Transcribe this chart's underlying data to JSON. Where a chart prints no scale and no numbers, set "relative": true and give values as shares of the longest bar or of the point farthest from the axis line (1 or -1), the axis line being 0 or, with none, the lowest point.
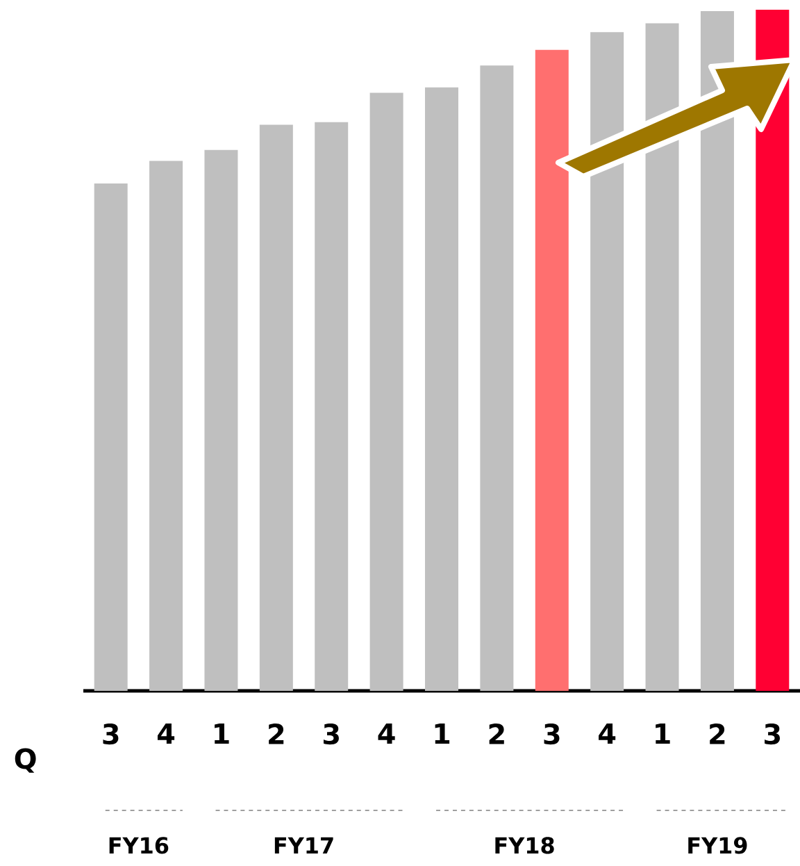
{
  "chart_data": {
    "type": "bar",
    "relative": true,
    "xlabel": "Q",
    "categories": [
      "3",
      "4",
      "1",
      "2",
      "3",
      "4",
      "1",
      "2",
      "3",
      "4",
      "1",
      "2",
      "3"
    ],
    "values": [
      0.745,
      0.778,
      0.794,
      0.831,
      0.835,
      0.878,
      0.886,
      0.918,
      0.941,
      0.967,
      0.98,
      0.998,
      1
    ],
    "colors": [
      "#bfbfbf",
      "#bfbfbf",
      "#bfbfbf",
      "#bfbfbf",
      "#bfbfbf",
      "#bfbfbf",
      "#bfbfbf",
      "#bfbfbf",
      "#ff6f6f",
      "#bfbfbf",
      "#bfbfbf",
      "#bfbfbf",
      "#ff0033"
    ],
    "annotations": [
      "FY16",
      "FY17",
      "FY18",
      "FY19"
    ]
  }
}
